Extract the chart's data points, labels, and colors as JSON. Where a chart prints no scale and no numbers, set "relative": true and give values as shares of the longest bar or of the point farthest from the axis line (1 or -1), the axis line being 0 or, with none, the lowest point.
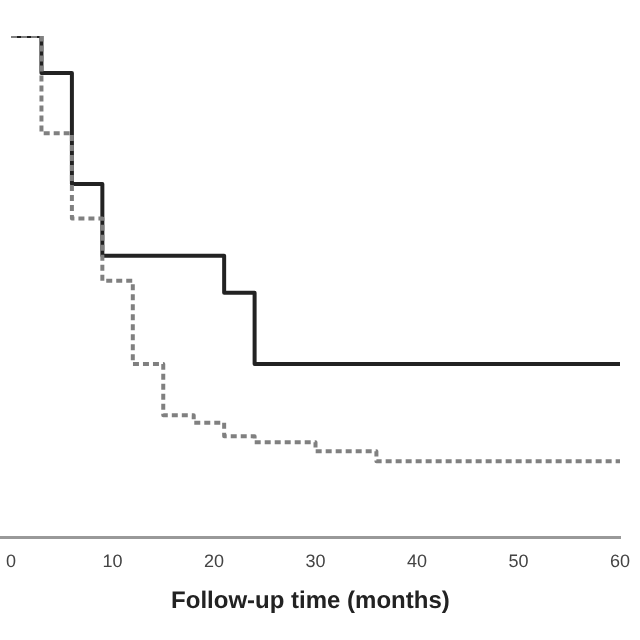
{
  "chart_data": {
    "type": "step",
    "xlabel": "Follow-up time (months)",
    "relative": true,
    "xlim": [
      -1,
      60
    ],
    "xticks": [
      0,
      10,
      20,
      30,
      40,
      50,
      60
    ],
    "grid": false,
    "legend": false,
    "series": [
      {
        "color": "#222222",
        "line_style": "solid",
        "x": [
          0,
          3,
          6,
          9,
          21,
          24,
          60
        ],
        "values": [
          1,
          0.926,
          0.705,
          0.562,
          0.488,
          0.346,
          0.346
        ]
      },
      {
        "color": "#808080",
        "line_style": "dashed",
        "x": [
          0,
          3,
          6,
          9,
          12,
          15,
          18,
          21,
          24,
          30,
          36,
          60
        ],
        "values": [
          1,
          0.806,
          0.636,
          0.512,
          0.346,
          0.244,
          0.229,
          0.202,
          0.19,
          0.172,
          0.152,
          0.152
        ]
      }
    ]
  }
}
